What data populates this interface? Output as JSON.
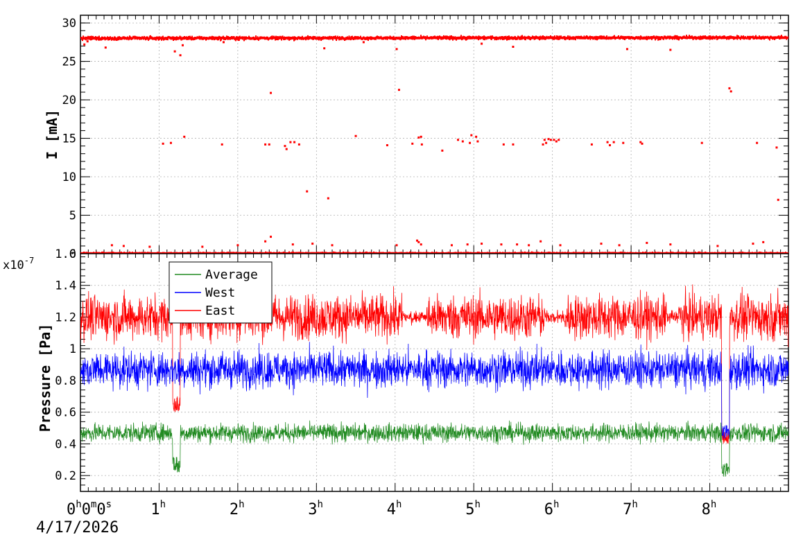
{
  "chart_data": [
    {
      "type": "scatter",
      "title": "",
      "ylabel": "I [mA]",
      "xlabel": "",
      "ylim": [
        0,
        31
      ],
      "xlim": [
        0,
        9
      ],
      "x_unit": "hours",
      "y_ticks": [
        "0",
        "5",
        "10",
        "15",
        "20",
        "25",
        "30"
      ],
      "grid": true,
      "series": [
        {
          "color": "#ff0000",
          "baseline_band": {
            "from_hour": 0,
            "to_hour": 9,
            "y_start": 28.0,
            "y_end": 28.1
          },
          "values": [
            [
              0.05,
              27.2
            ],
            [
              0.09,
              27.6
            ],
            [
              0.32,
              26.8
            ],
            [
              1.05,
              14.3
            ],
            [
              1.15,
              14.4
            ],
            [
              1.2,
              26.3
            ],
            [
              1.27,
              25.8
            ],
            [
              1.3,
              27.1
            ],
            [
              1.32,
              15.2
            ],
            [
              1.8,
              14.2
            ],
            [
              1.82,
              27.5
            ],
            [
              2.01,
              27.8
            ],
            [
              2.35,
              14.2
            ],
            [
              2.4,
              14.2
            ],
            [
              2.42,
              20.9
            ],
            [
              2.6,
              14.0
            ],
            [
              2.62,
              13.6
            ],
            [
              2.67,
              14.5
            ],
            [
              2.72,
              14.5
            ],
            [
              2.78,
              14.2
            ],
            [
              2.88,
              8.1
            ],
            [
              3.1,
              26.7
            ],
            [
              3.15,
              7.2
            ],
            [
              3.5,
              15.3
            ],
            [
              3.6,
              27.5
            ],
            [
              3.9,
              14.1
            ],
            [
              4.02,
              26.6
            ],
            [
              4.05,
              21.3
            ],
            [
              4.22,
              14.3
            ],
            [
              4.3,
              15.1
            ],
            [
              4.33,
              15.2
            ],
            [
              4.34,
              14.2
            ],
            [
              4.6,
              13.4
            ],
            [
              4.8,
              14.8
            ],
            [
              4.86,
              14.6
            ],
            [
              4.95,
              14.4
            ],
            [
              4.97,
              15.4
            ],
            [
              5.03,
              15.2
            ],
            [
              5.05,
              14.6
            ],
            [
              5.1,
              27.3
            ],
            [
              5.38,
              14.2
            ],
            [
              5.5,
              14.2
            ],
            [
              5.5,
              26.9
            ],
            [
              5.88,
              14.2
            ],
            [
              5.9,
              14.8
            ],
            [
              5.92,
              14.4
            ],
            [
              5.95,
              14.9
            ],
            [
              5.98,
              14.8
            ],
            [
              6.02,
              14.8
            ],
            [
              6.05,
              14.6
            ],
            [
              6.08,
              14.8
            ],
            [
              6.5,
              14.2
            ],
            [
              6.7,
              14.5
            ],
            [
              6.73,
              14.1
            ],
            [
              6.78,
              14.5
            ],
            [
              6.9,
              14.4
            ],
            [
              6.95,
              26.6
            ],
            [
              7.12,
              14.5
            ],
            [
              7.14,
              14.3
            ],
            [
              7.5,
              26.5
            ],
            [
              7.9,
              14.4
            ],
            [
              8.25,
              21.5
            ],
            [
              8.27,
              21.1
            ],
            [
              8.6,
              14.4
            ],
            [
              8.85,
              13.8
            ],
            [
              8.87,
              7.0
            ],
            [
              0.4,
              1.1
            ],
            [
              0.55,
              1.0
            ],
            [
              0.88,
              0.9
            ],
            [
              1.55,
              0.9
            ],
            [
              2.0,
              1.1
            ],
            [
              2.35,
              1.6
            ],
            [
              2.42,
              2.2
            ],
            [
              2.7,
              1.2
            ],
            [
              2.95,
              1.3
            ],
            [
              3.2,
              1.1
            ],
            [
              4.02,
              1.1
            ],
            [
              4.28,
              1.7
            ],
            [
              4.3,
              1.5
            ],
            [
              4.33,
              1.2
            ],
            [
              4.72,
              1.1
            ],
            [
              4.92,
              1.2
            ],
            [
              5.1,
              1.3
            ],
            [
              5.35,
              1.2
            ],
            [
              5.55,
              1.2
            ],
            [
              5.7,
              1.1
            ],
            [
              5.85,
              1.6
            ],
            [
              6.1,
              1.1
            ],
            [
              6.62,
              1.3
            ],
            [
              6.85,
              1.1
            ],
            [
              7.2,
              1.4
            ],
            [
              7.5,
              1.2
            ],
            [
              8.1,
              1.0
            ],
            [
              8.55,
              1.3
            ],
            [
              8.68,
              1.5
            ]
          ]
        }
      ]
    },
    {
      "type": "line",
      "title": "",
      "ylabel": "Pressure [Pa]",
      "xlabel": "",
      "y_multiplier": "x10",
      "y_exponent": "-7",
      "ylim": [
        0.1,
        1.6
      ],
      "xlim": [
        0,
        9
      ],
      "x_unit": "hours",
      "y_ticks": [
        "0.2",
        "0.4",
        "0.6",
        "0.8",
        "1",
        "1.2",
        "1.4",
        "1.6"
      ],
      "grid": true,
      "legend": "top-left",
      "series": [
        {
          "name": "Average",
          "color": "#228b22",
          "mean": 0.47,
          "spread": 0.07,
          "dips": [
            [
              1.22,
              0.22
            ],
            [
              8.2,
              0.18
            ]
          ]
        },
        {
          "name": "West",
          "color": "#0000ff",
          "mean": 0.87,
          "spread": 0.14,
          "dips": [
            [
              8.2,
              0.42
            ]
          ]
        },
        {
          "name": "East",
          "color": "#ff0000",
          "mean": 1.2,
          "spread": 0.17,
          "dips": [
            [
              1.22,
              0.6
            ],
            [
              8.2,
              0.4
            ]
          ]
        }
      ]
    }
  ],
  "x_axis": {
    "tick_labels": [
      {
        "hour": 0,
        "main": "0",
        "parts": [
          [
            "h",
            "0"
          ],
          [
            "m",
            "0"
          ],
          [
            "s",
            ""
          ]
        ]
      },
      {
        "hour": 1,
        "main": "1",
        "parts": [
          [
            "h",
            ""
          ]
        ]
      },
      {
        "hour": 2,
        "main": "2",
        "parts": [
          [
            "h",
            ""
          ]
        ]
      },
      {
        "hour": 3,
        "main": "3",
        "parts": [
          [
            "h",
            ""
          ]
        ]
      },
      {
        "hour": 4,
        "main": "4",
        "parts": [
          [
            "h",
            ""
          ]
        ]
      },
      {
        "hour": 5,
        "main": "5",
        "parts": [
          [
            "h",
            ""
          ]
        ]
      },
      {
        "hour": 6,
        "main": "6",
        "parts": [
          [
            "h",
            ""
          ]
        ]
      },
      {
        "hour": 7,
        "main": "7",
        "parts": [
          [
            "h",
            ""
          ]
        ]
      },
      {
        "hour": 8,
        "main": "8",
        "parts": [
          [
            "h",
            ""
          ]
        ]
      }
    ],
    "date": "4/17/2026"
  }
}
